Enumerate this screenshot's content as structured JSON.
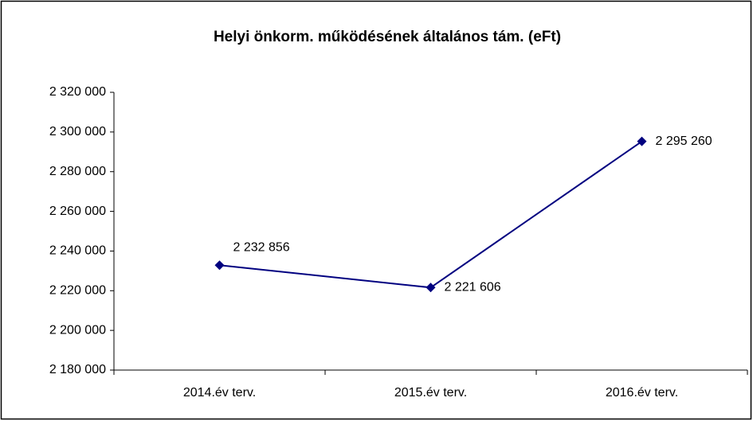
{
  "chart_data": {
    "type": "line",
    "title": "Helyi önkorm. működésének általános tám. (eFt)",
    "categories": [
      "2014.év terv.",
      "2015.év terv.",
      "2016.év terv."
    ],
    "series": [
      {
        "name": "Helyi önkorm. működésének általános tám. (eFt)",
        "color": "#000080",
        "values": [
          2232856,
          2221606,
          2295260
        ],
        "value_labels": [
          "2 232 856",
          "2 221 606",
          "2 295 260"
        ]
      }
    ],
    "ylim": [
      2180000,
      2320000
    ],
    "yticks": [
      {
        "value": 2180000,
        "label": "2 180 000"
      },
      {
        "value": 2200000,
        "label": "2 200 000"
      },
      {
        "value": 2220000,
        "label": "2 220 000"
      },
      {
        "value": 2240000,
        "label": "2 240 000"
      },
      {
        "value": 2260000,
        "label": "2 260 000"
      },
      {
        "value": 2280000,
        "label": "2 280 000"
      },
      {
        "value": 2300000,
        "label": "2 300 000"
      },
      {
        "value": 2320000,
        "label": "2 320 000"
      }
    ],
    "grid": false
  }
}
